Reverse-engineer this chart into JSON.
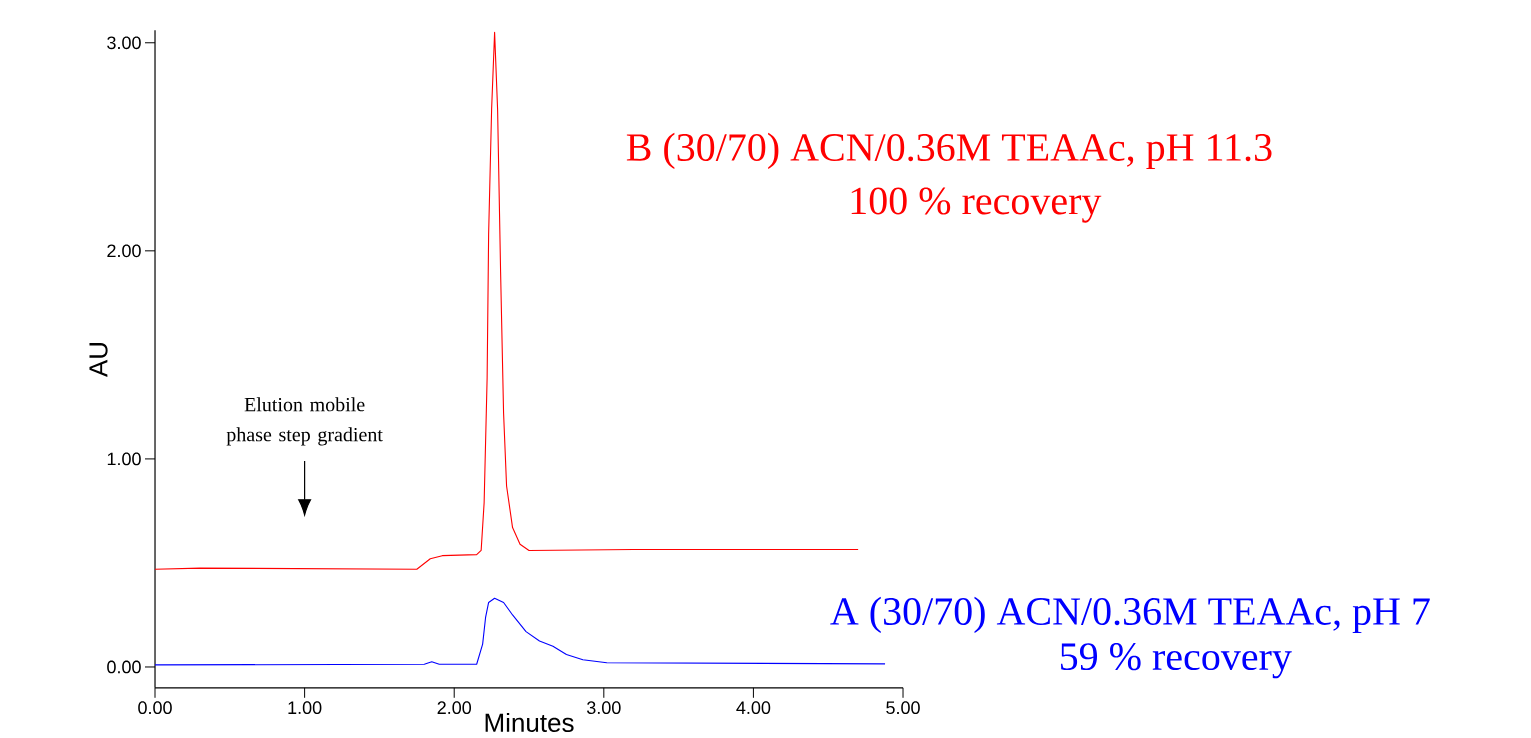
{
  "chart_data": {
    "type": "line",
    "xlabel": "Minutes",
    "ylabel": "AU",
    "xlim": [
      0,
      5
    ],
    "ylim": [
      -0.1,
      3.06
    ],
    "xticks": [
      {
        "value": 0,
        "label": "0.00"
      },
      {
        "value": 1,
        "label": "1.00"
      },
      {
        "value": 2,
        "label": "2.00"
      },
      {
        "value": 3,
        "label": "3.00"
      },
      {
        "value": 4,
        "label": "4.00"
      },
      {
        "value": 5,
        "label": "5.00"
      }
    ],
    "yticks": [
      {
        "value": 0,
        "label": "0.00"
      },
      {
        "value": 1,
        "label": "1.00"
      },
      {
        "value": 2,
        "label": "2.00"
      },
      {
        "value": 3,
        "label": "3.00"
      }
    ],
    "legend": false,
    "grid": false,
    "marker": "none",
    "line_style": "solid",
    "series": [
      {
        "name": "B (30/70) ACN/0.36M TEAAc, pH 11.3",
        "color": "#ff0000",
        "x": [
          0,
          0.3,
          1.75,
          1.84,
          1.92,
          2.15,
          2.18,
          2.2,
          2.22,
          2.23,
          2.25,
          2.27,
          2.29,
          2.31,
          2.33,
          2.35,
          2.39,
          2.44,
          2.5,
          3.2,
          4.7
        ],
        "values": [
          0.47,
          0.475,
          0.47,
          0.52,
          0.535,
          0.54,
          0.56,
          0.79,
          1.39,
          2.08,
          2.68,
          3.05,
          2.68,
          1.9,
          1.22,
          0.87,
          0.67,
          0.59,
          0.56,
          0.565,
          0.565
        ]
      },
      {
        "name": "A (30/70) ACN/0.36M TEAAc, pH 7",
        "color": "#0000ff",
        "x": [
          0,
          1.8,
          1.85,
          1.9,
          2.15,
          2.19,
          2.21,
          2.23,
          2.27,
          2.33,
          2.39,
          2.48,
          2.57,
          2.66,
          2.75,
          2.86,
          3.02,
          4.88
        ],
        "values": [
          0.01,
          0.013,
          0.025,
          0.013,
          0.013,
          0.11,
          0.24,
          0.31,
          0.33,
          0.31,
          0.25,
          0.17,
          0.125,
          0.1,
          0.06,
          0.035,
          0.02,
          0.015
        ]
      }
    ],
    "annotations": [
      "Elution mobile phase step gradient",
      "100 % recovery",
      "59 % recovery"
    ]
  }
}
